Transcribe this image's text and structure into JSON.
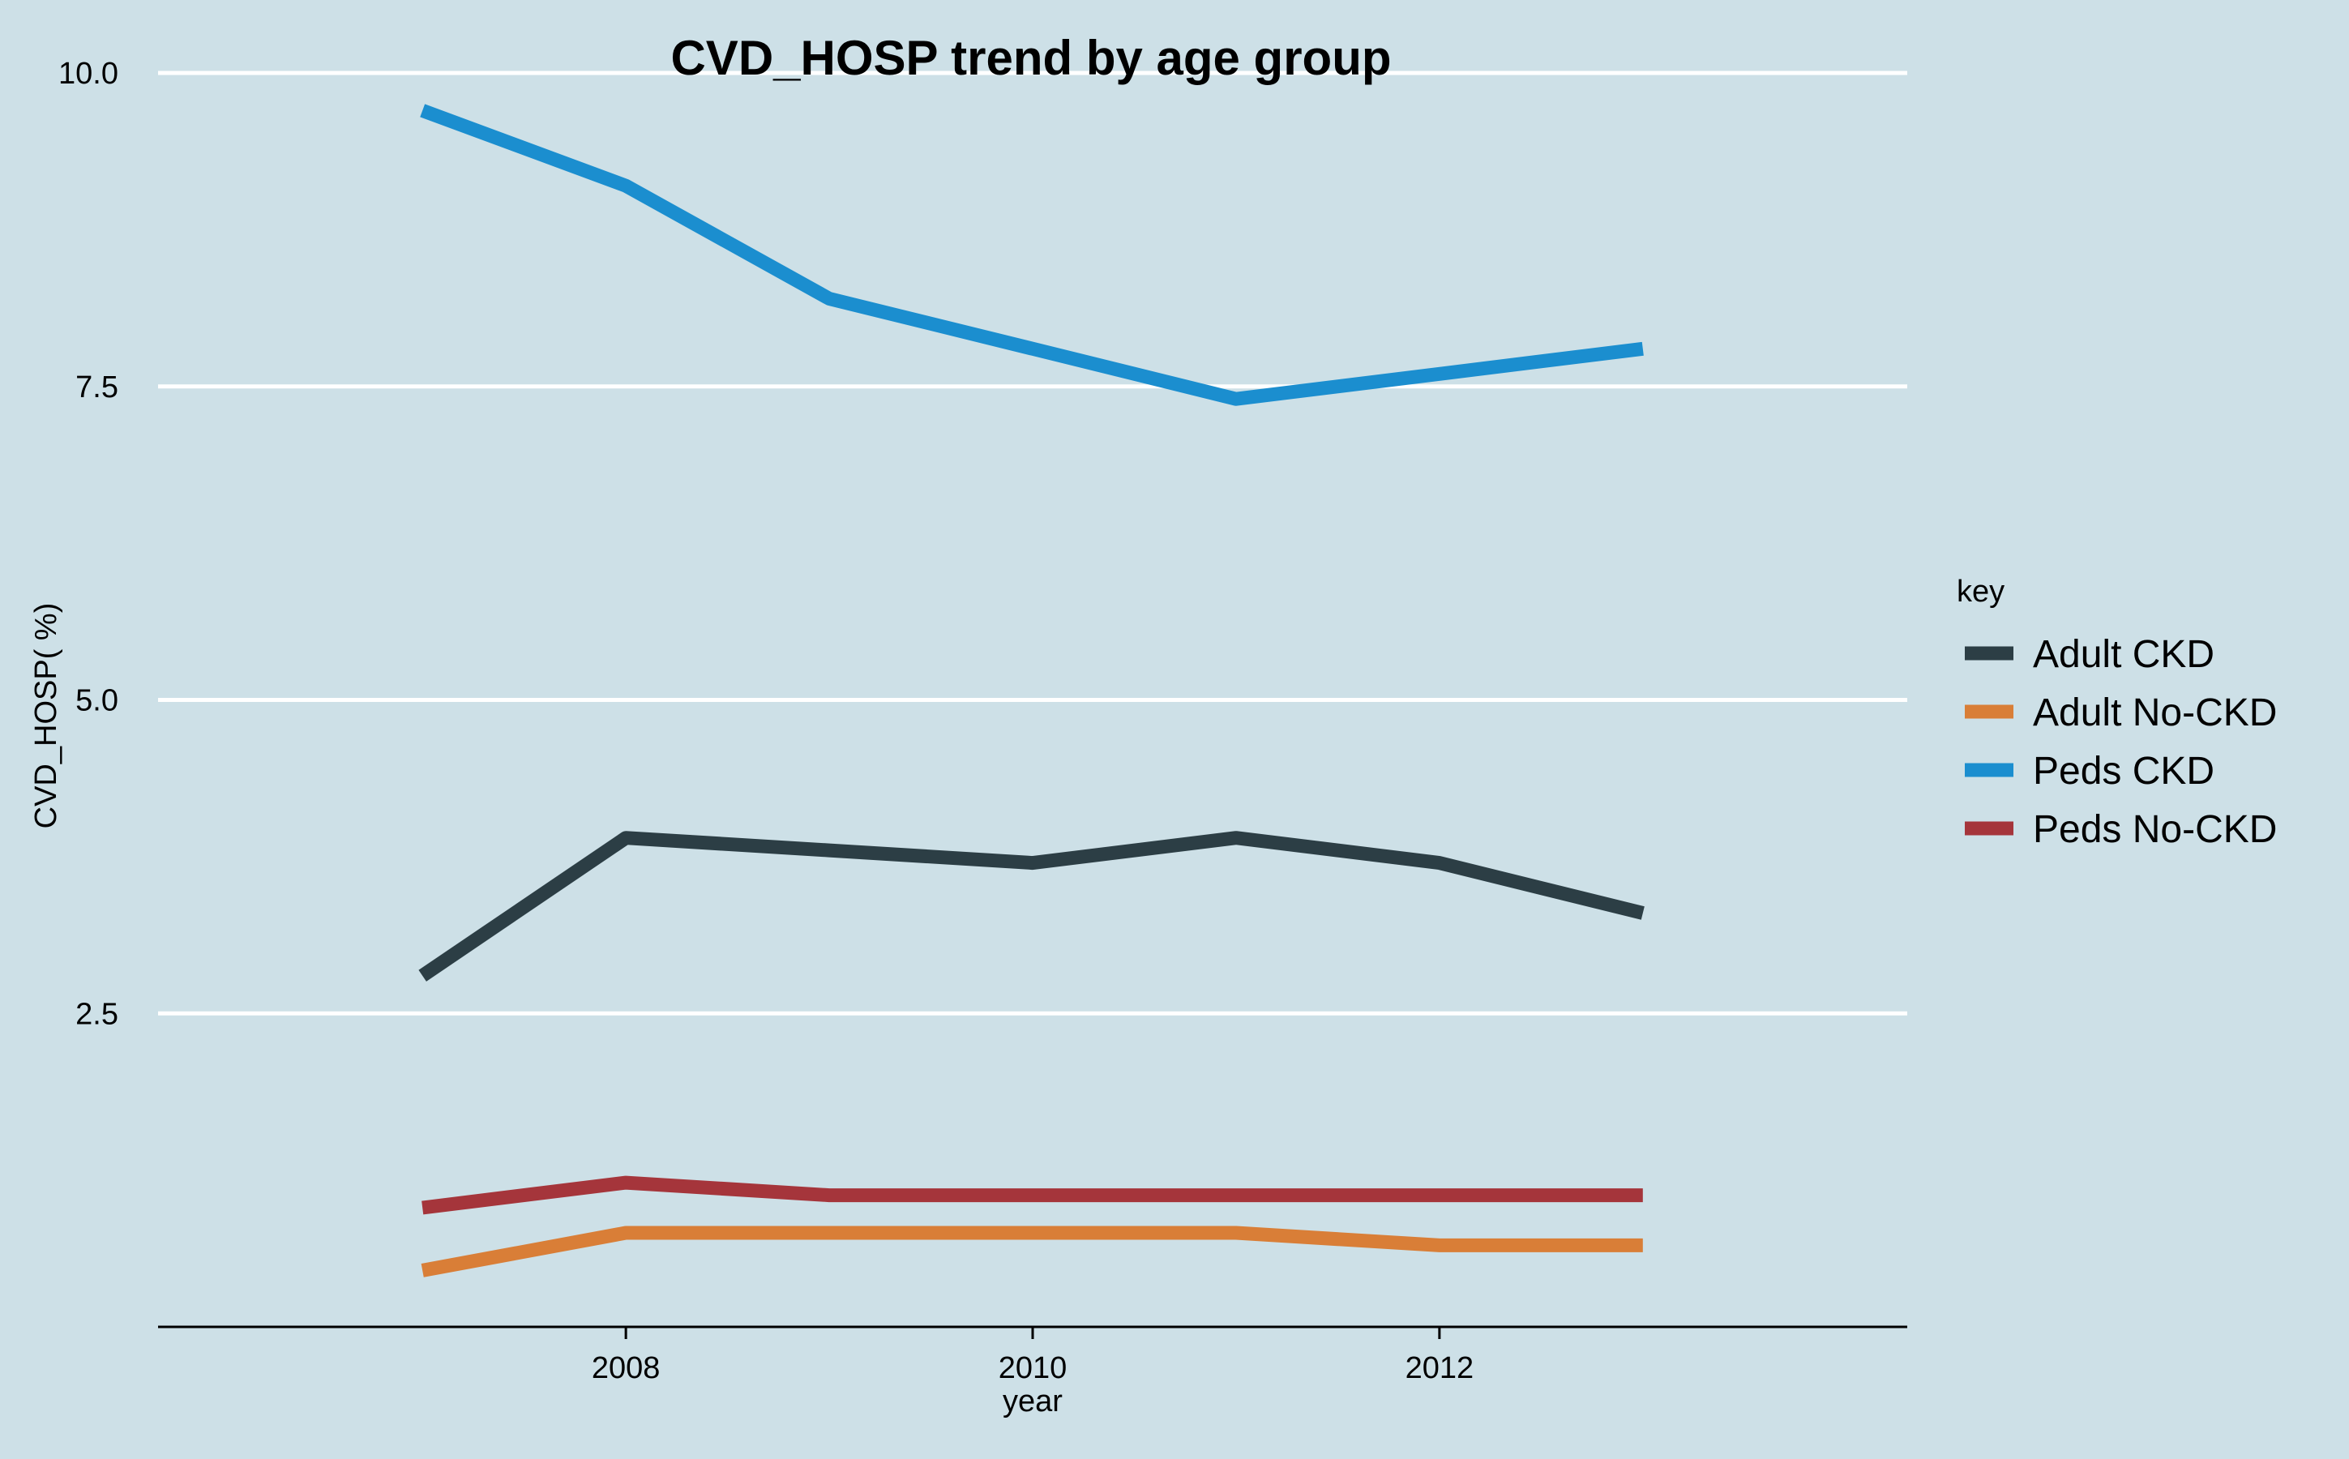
{
  "chart_data": {
    "type": "line",
    "title": "CVD_HOSP trend by age group",
    "xlabel": "year",
    "ylabel": "CVD_HOSP( %)",
    "x": [
      2007,
      2008,
      2009,
      2010,
      2011,
      2012,
      2013
    ],
    "xlim": [
      2005.7,
      2014.3
    ],
    "ylim": [
      0,
      10.0
    ],
    "x_ticks": [
      2008,
      2010,
      2012
    ],
    "x_tick_labels": [
      "2008",
      "2010",
      "2012"
    ],
    "y_ticks": [
      2.5,
      5.0,
      7.5,
      10.0
    ],
    "y_tick_labels": [
      "2.5",
      "5.0",
      "7.5",
      "10.0"
    ],
    "grid": "horizontal major",
    "legend": {
      "title": "key",
      "position": "right"
    },
    "series": [
      {
        "name": "Adult CKD",
        "color": "#2c3e45",
        "values": [
          2.8,
          3.9,
          3.8,
          3.7,
          3.9,
          3.7,
          3.3
        ]
      },
      {
        "name": "Adult No-CKD",
        "color": "#d97e37",
        "values": [
          0.45,
          0.75,
          0.75,
          0.75,
          0.75,
          0.65,
          0.65
        ]
      },
      {
        "name": "Peds CKD",
        "color": "#1b8ecf",
        "values": [
          9.7,
          9.1,
          8.2,
          7.8,
          7.4,
          7.6,
          7.8
        ]
      },
      {
        "name": "Peds No-CKD",
        "color": "#a5353b",
        "values": [
          0.95,
          1.15,
          1.05,
          1.05,
          1.05,
          1.05,
          1.05
        ]
      }
    ],
    "colors": {
      "background": "#cde0e7",
      "gridline": "#ffffff",
      "axis": "#000000"
    }
  }
}
